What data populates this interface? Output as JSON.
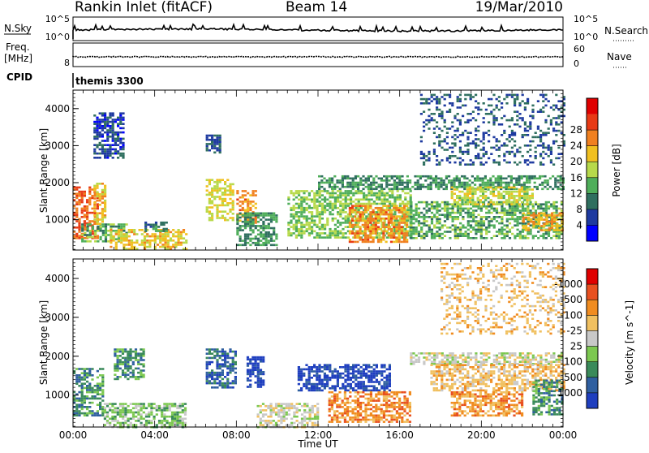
{
  "header": {
    "title": "Rankin Inlet (fitACF)",
    "beam": "Beam 14",
    "date": "19/Mar/2010"
  },
  "top_panels": {
    "nsky_label": "N.Sky",
    "nsky_ticks": [
      "10^5",
      "10^0"
    ],
    "nsearch_label": "N.Search",
    "nsearch_ticks": [
      "10^5",
      "10^0"
    ],
    "freq_label_1": "Freq.",
    "freq_label_2": "[MHz]",
    "freq_ticks": [
      "8"
    ],
    "nave_label": "Nave",
    "nave_ticks": [
      "60",
      "0"
    ],
    "cpid_label": "CPID",
    "cpid_value": "themis 3300"
  },
  "chart_data": [
    {
      "type": "heatmap",
      "title": "",
      "xlabel": "",
      "ylabel": "Slant Range [km]",
      "x_ticks": [
        "00:00",
        "04:00",
        "08:00",
        "12:00",
        "16:00",
        "20:00",
        "00:00"
      ],
      "y_ticks": [
        "1000",
        "2000",
        "3000",
        "4000"
      ],
      "ylim": [
        180,
        4500
      ],
      "xlim_hours": [
        0,
        24
      ],
      "colorbar": {
        "label": "Power [dB]",
        "ticks": [
          "4",
          "8",
          "12",
          "16",
          "20",
          "24",
          "28"
        ],
        "colors": [
          "#0000ff",
          "#1e3aa0",
          "#2f6f5f",
          "#4fae5a",
          "#b7d94a",
          "#f0c020",
          "#f08020",
          "#e83a15",
          "#e00000"
        ]
      },
      "regions": [
        {
          "t0": 0.0,
          "t1": 1.2,
          "r0": 500,
          "r1": 1900,
          "v": 26
        },
        {
          "t0": 0.4,
          "t1": 2.6,
          "r0": 400,
          "r1": 900,
          "v": 12
        },
        {
          "t0": 1.0,
          "t1": 1.6,
          "r0": 900,
          "r1": 2000,
          "v": 20
        },
        {
          "t0": 1.8,
          "t1": 5.5,
          "r0": 220,
          "r1": 750,
          "v": 19
        },
        {
          "t0": 3.5,
          "t1": 4.6,
          "r0": 700,
          "r1": 950,
          "v": 9
        },
        {
          "t0": 6.5,
          "t1": 7.8,
          "r0": 1000,
          "r1": 2100,
          "v": 18
        },
        {
          "t0": 8.0,
          "t1": 9.0,
          "r0": 900,
          "r1": 1800,
          "v": 23
        },
        {
          "t0": 8.0,
          "t1": 10.0,
          "r0": 300,
          "r1": 1200,
          "v": 10
        },
        {
          "t0": 10.5,
          "t1": 16.5,
          "r0": 500,
          "r1": 1800,
          "v": 14
        },
        {
          "t0": 13.5,
          "t1": 16.3,
          "r0": 400,
          "r1": 1400,
          "v": 23
        },
        {
          "t0": 16.5,
          "t1": 24.0,
          "r0": 500,
          "r1": 1500,
          "v": 12
        },
        {
          "t0": 12.0,
          "t1": 24.0,
          "r0": 1850,
          "r1": 2200,
          "v": 10
        },
        {
          "t0": 18.5,
          "t1": 22.5,
          "r0": 1400,
          "r1": 1900,
          "v": 17
        },
        {
          "t0": 22.0,
          "t1": 24.0,
          "r0": 700,
          "r1": 1200,
          "v": 22
        },
        {
          "t0": 17.0,
          "t1": 24.0,
          "r0": 2500,
          "r1": 4400,
          "v": 6
        },
        {
          "t0": 1.0,
          "t1": 2.5,
          "r0": 2700,
          "r1": 3900,
          "v": 5
        },
        {
          "t0": 6.5,
          "t1": 7.2,
          "r0": 2800,
          "r1": 3300,
          "v": 6
        }
      ]
    },
    {
      "type": "heatmap",
      "title": "",
      "xlabel": "Time UT",
      "ylabel": "Slant Range [km]",
      "x_ticks": [
        "00:00",
        "04:00",
        "08:00",
        "12:00",
        "16:00",
        "20:00",
        "00:00"
      ],
      "y_ticks": [
        "1000",
        "2000",
        "3000",
        "4000"
      ],
      "ylim": [
        180,
        4500
      ],
      "xlim_hours": [
        0,
        24
      ],
      "colorbar": {
        "label": "Velocity [m s^-1]",
        "ticks": [
          "1000",
          "500",
          "100",
          "25",
          "-25",
          "-100",
          "-500",
          "-1000"
        ],
        "colors": [
          "#1f3fbf",
          "#2f5fa0",
          "#3a8a5a",
          "#7cc850",
          "#c8c8c8",
          "#f0c060",
          "#f08c20",
          "#e85020",
          "#e00000"
        ]
      },
      "regions": [
        {
          "t0": 0.0,
          "t1": 1.5,
          "r0": 500,
          "r1": 1700,
          "v": 2
        },
        {
          "t0": 1.5,
          "t1": 5.5,
          "r0": 200,
          "r1": 800,
          "v": 3
        },
        {
          "t0": 2.0,
          "t1": 3.5,
          "r0": 1400,
          "r1": 2200,
          "v": 2
        },
        {
          "t0": 6.5,
          "t1": 8.0,
          "r0": 1200,
          "r1": 2200,
          "v": 1
        },
        {
          "t0": 8.5,
          "t1": 9.3,
          "r0": 1200,
          "r1": 2000,
          "v": 0
        },
        {
          "t0": 11.0,
          "t1": 15.5,
          "r0": 1100,
          "r1": 1800,
          "v": 0
        },
        {
          "t0": 12.5,
          "t1": 16.5,
          "r0": 300,
          "r1": 1100,
          "v": 6
        },
        {
          "t0": 16.5,
          "t1": 24.0,
          "r0": 1800,
          "r1": 2100,
          "v": 4
        },
        {
          "t0": 17.5,
          "t1": 24.0,
          "r0": 1100,
          "r1": 1800,
          "v": 5
        },
        {
          "t0": 18.5,
          "t1": 22.0,
          "r0": 500,
          "r1": 1100,
          "v": 6
        },
        {
          "t0": 22.5,
          "t1": 24.0,
          "r0": 500,
          "r1": 1400,
          "v": 2
        },
        {
          "t0": 18.0,
          "t1": 24.0,
          "r0": 2600,
          "r1": 4400,
          "v": 5
        },
        {
          "t0": 9.0,
          "t1": 12.0,
          "r0": 200,
          "r1": 800,
          "v": 4
        }
      ]
    }
  ]
}
